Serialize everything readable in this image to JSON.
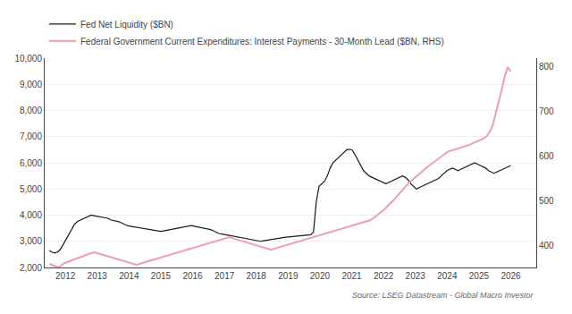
{
  "chart_data": {
    "type": "line",
    "annotations": [
      "Source: LSEG Datastream - Global Macro Investor"
    ],
    "series": [
      {
        "name": "Fed Net Liquidity ($BN)",
        "color": "#1a1a1a",
        "x": [
          2011.5,
          2011.5873,
          2011.6747,
          2011.762,
          2011.8494,
          2011.9367,
          2012.0241,
          2012.1114,
          2012.1988,
          2012.2861,
          2012.3735,
          2012.4608,
          2012.5482,
          2012.6355,
          2012.7229,
          2012.8102,
          2012.8976,
          2012.9849,
          2013.0723,
          2013.1596,
          2013.247,
          2013.3343,
          2013.4217,
          2013.509,
          2013.5964,
          2013.6837,
          2013.7711,
          2013.8584,
          2013.9458,
          2014.0331,
          2014.1205,
          2014.2078,
          2014.2952,
          2014.3825,
          2014.4699,
          2014.5572,
          2014.6446,
          2014.7319,
          2014.8193,
          2014.9066,
          2014.994,
          2015.0813,
          2015.1687,
          2015.256,
          2015.3434,
          2015.4307,
          2015.5181,
          2015.6054,
          2015.6928,
          2015.7801,
          2015.8675,
          2015.9548,
          2016.0422,
          2016.1295,
          2016.2169,
          2016.3042,
          2016.3916,
          2016.4789,
          2016.5663,
          2016.6536,
          2016.741,
          2016.8283,
          2016.9157,
          2017.003,
          2017.0904,
          2017.1777,
          2017.2651,
          2017.3524,
          2017.4398,
          2017.5271,
          2017.6145,
          2017.7018,
          2017.7892,
          2017.8765,
          2017.9639,
          2018.0512,
          2018.1386,
          2018.2259,
          2018.3133,
          2018.4006,
          2018.488,
          2018.5753,
          2018.6627,
          2018.75,
          2018.8373,
          2018.9247,
          2019.012,
          2019.0994,
          2019.1867,
          2019.2741,
          2019.3614,
          2019.4488,
          2019.5361,
          2019.6235,
          2019.7108,
          2019.7982,
          2019.8855,
          2019.9729,
          2020.0602,
          2020.1476,
          2020.2349,
          2020.3223,
          2020.4096,
          2020.497,
          2020.5843,
          2020.6717,
          2020.759,
          2020.8464,
          2020.9337,
          2021.0211,
          2021.1084,
          2021.1958,
          2021.2831,
          2021.3705,
          2021.4578,
          2021.5452,
          2021.6325,
          2021.7199,
          2021.8072,
          2021.8946,
          2021.9819,
          2022.0693,
          2022.1566,
          2022.244,
          2022.3313,
          2022.4187,
          2022.506,
          2022.5934,
          2022.6807,
          2022.7681,
          2022.8554,
          2022.9428,
          2023.0301,
          2023.1175,
          2023.2048,
          2023.2922,
          2023.3795,
          2023.4669,
          2023.5542,
          2023.6416,
          2023.7289,
          2023.8163,
          2023.9036,
          2023.991,
          2024.0783,
          2024.1657,
          2024.253,
          2024.3404,
          2024.4277,
          2024.5151,
          2024.6024,
          2024.6898,
          2024.7771,
          2024.8645,
          2024.9518,
          2025.0392,
          2025.1265,
          2025.2139,
          2025.3012,
          2025.3886,
          2025.4759,
          2025.5633,
          2025.6506,
          2025.738,
          2025.8253,
          2025.9127,
          2026.0
        ],
        "values": [
          2650,
          2580,
          2550,
          2600,
          2700,
          2900,
          3100,
          3300,
          3500,
          3650,
          3750,
          3800,
          3850,
          3900,
          3950,
          4000,
          3980,
          3960,
          3940,
          3920,
          3900,
          3880,
          3820,
          3800,
          3780,
          3750,
          3700,
          3650,
          3600,
          3580,
          3560,
          3540,
          3520,
          3500,
          3480,
          3460,
          3440,
          3420,
          3400,
          3380,
          3380,
          3400,
          3420,
          3440,
          3460,
          3480,
          3500,
          3520,
          3540,
          3560,
          3580,
          3600,
          3580,
          3560,
          3540,
          3520,
          3500,
          3480,
          3450,
          3400,
          3350,
          3300,
          3280,
          3260,
          3240,
          3220,
          3200,
          3180,
          3160,
          3140,
          3120,
          3100,
          3080,
          3060,
          3040,
          3020,
          3000,
          3020,
          3040,
          3060,
          3080,
          3100,
          3120,
          3140,
          3150,
          3160,
          3170,
          3180,
          3190,
          3200,
          3210,
          3220,
          3230,
          3240,
          3250,
          3350,
          4500,
          5100,
          5200,
          5300,
          5500,
          5800,
          6000,
          6100,
          6200,
          6300,
          6400,
          6500,
          6520,
          6480,
          6300,
          6100,
          5900,
          5700,
          5600,
          5500,
          5450,
          5400,
          5350,
          5300,
          5250,
          5200,
          5250,
          5300,
          5350,
          5400,
          5450,
          5500,
          5450,
          5350,
          5200,
          5100,
          5000,
          5050,
          5100,
          5150,
          5200,
          5250,
          5300,
          5350,
          5400,
          5500,
          5600,
          5700,
          5750,
          5800,
          5750,
          5700,
          5750,
          5800,
          5850,
          5900,
          5950,
          6000,
          5950,
          5900,
          5850,
          5800,
          5700,
          5650,
          5600,
          5650,
          5700,
          5750,
          5800,
          5850,
          5900
        ]
      },
      {
        "name": "Federal Government Current Expenditures: Interest Payments - 30-Month Lead ($BN, RHS)",
        "color": "#e8a0b0",
        "axis": "y2",
        "x": [
          2011.5,
          2011.5942,
          2011.6883,
          2011.7825,
          2011.8766,
          2011.9708,
          2012.0649,
          2012.1591,
          2012.2532,
          2012.3474,
          2012.4416,
          2012.5357,
          2012.6299,
          2012.724,
          2012.8182,
          2012.9123,
          2013.0065,
          2013.1006,
          2013.1948,
          2013.289,
          2013.3831,
          2013.4773,
          2013.5714,
          2013.6656,
          2013.7597,
          2013.8539,
          2013.9481,
          2014.0422,
          2014.1364,
          2014.2305,
          2014.3247,
          2014.4188,
          2014.513,
          2014.6071,
          2014.7013,
          2014.7955,
          2014.8896,
          2014.9838,
          2015.0779,
          2015.1721,
          2015.2662,
          2015.3604,
          2015.4545,
          2015.5487,
          2015.6429,
          2015.737,
          2015.8312,
          2015.9253,
          2016.0195,
          2016.1136,
          2016.2078,
          2016.3019,
          2016.3961,
          2016.4903,
          2016.5844,
          2016.6786,
          2016.7727,
          2016.8669,
          2016.961,
          2017.0552,
          2017.1494,
          2017.2435,
          2017.3377,
          2017.4318,
          2017.526,
          2017.6201,
          2017.7143,
          2017.8084,
          2017.9026,
          2017.9968,
          2018.0909,
          2018.1851,
          2018.2792,
          2018.3734,
          2018.4675,
          2018.5617,
          2018.6558,
          2018.75,
          2018.8442,
          2018.9383,
          2019.0325,
          2019.1266,
          2019.2208,
          2019.3149,
          2019.4091,
          2019.5032,
          2019.5974,
          2019.6916,
          2019.7857,
          2019.8799,
          2019.974,
          2020.0682,
          2020.1623,
          2020.2565,
          2020.3506,
          2020.4448,
          2020.539,
          2020.6331,
          2020.7273,
          2020.8214,
          2020.9156,
          2021.0097,
          2021.1039,
          2021.1981,
          2021.2922,
          2021.3864,
          2021.4805,
          2021.5747,
          2021.6688,
          2021.763,
          2021.8571,
          2021.9513,
          2022.0455,
          2022.1396,
          2022.2338,
          2022.3279,
          2022.4221,
          2022.5162,
          2022.6104,
          2022.7045,
          2022.7987,
          2022.8929,
          2022.987,
          2023.0812,
          2023.1753,
          2023.2695,
          2023.3636,
          2023.4578,
          2023.5519,
          2023.6461,
          2023.7403,
          2023.8344,
          2023.9286,
          2024.0227,
          2024.1169,
          2024.211,
          2024.3052,
          2024.3994,
          2024.4935,
          2024.5877,
          2024.6818,
          2024.776,
          2024.8701,
          2024.9643,
          2025.0584,
          2025.1526,
          2025.2468,
          2025.3409,
          2025.4351,
          2025.5292,
          2025.6234,
          2025.7175,
          2025.8117,
          2025.9058,
          2026.0
        ],
        "values": [
          358,
          355,
          352,
          350,
          355,
          360,
          362,
          365,
          368,
          370,
          372,
          375,
          378,
          380,
          382,
          384,
          382,
          380,
          378,
          376,
          374,
          372,
          370,
          368,
          366,
          364,
          362,
          360,
          358,
          356,
          358,
          360,
          362,
          364,
          366,
          368,
          370,
          372,
          374,
          376,
          378,
          380,
          382,
          384,
          386,
          388,
          390,
          392,
          394,
          396,
          398,
          400,
          402,
          404,
          406,
          408,
          410,
          412,
          414,
          416,
          418,
          416,
          414,
          412,
          410,
          408,
          406,
          404,
          402,
          400,
          398,
          396,
          394,
          392,
          390,
          392,
          394,
          396,
          398,
          400,
          402,
          404,
          406,
          408,
          410,
          412,
          414,
          416,
          418,
          420,
          422,
          424,
          426,
          428,
          430,
          432,
          434,
          436,
          438,
          440,
          442,
          444,
          446,
          448,
          450,
          452,
          454,
          456,
          460,
          465,
          470,
          476,
          482,
          488,
          495,
          502,
          510,
          518,
          526,
          534,
          540,
          546,
          552,
          558,
          564,
          570,
          575,
          580,
          585,
          590,
          595,
          600,
          605,
          610,
          612,
          614,
          616,
          618,
          620,
          622,
          625,
          628,
          631,
          634,
          637,
          640,
          645,
          655,
          670,
          695,
          720,
          750,
          780,
          800,
          790
        ]
      }
    ],
    "xlim": [
      2011.35,
      2026.8
    ],
    "xticks": [
      2012,
      2013,
      2014,
      2015,
      2016,
      2017,
      2018,
      2019,
      2020,
      2021,
      2022,
      2023,
      2024,
      2025,
      2026
    ],
    "ylim": [
      2000,
      10000
    ],
    "yticks": [
      {
        "value": 2000,
        "label": "2,000"
      },
      {
        "value": 3000,
        "label": "3,000"
      },
      {
        "value": 4000,
        "label": "4,000"
      },
      {
        "value": 5000,
        "label": "5,000"
      },
      {
        "value": 6000,
        "label": "6,000"
      },
      {
        "value": 7000,
        "label": "7,000"
      },
      {
        "value": 8000,
        "label": "8,000"
      },
      {
        "value": 9000,
        "label": "9,000"
      },
      {
        "value": 10000,
        "label": "10,000"
      }
    ],
    "y2lim": [
      350,
      820
    ],
    "y2ticks": [
      400,
      500,
      600,
      700,
      800
    ],
    "grid": true,
    "legend": "upper left"
  }
}
